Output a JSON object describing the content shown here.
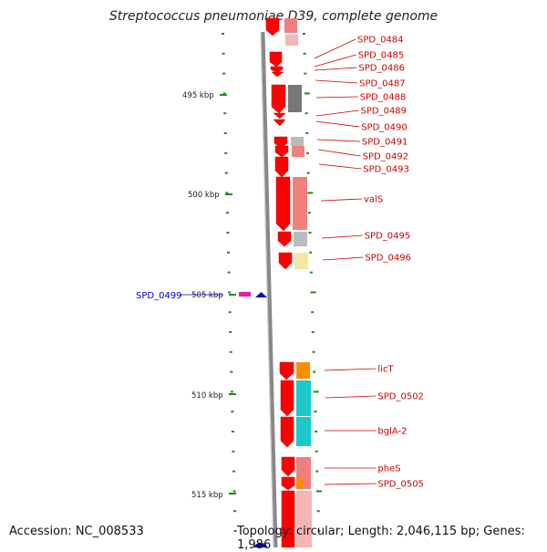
{
  "title": "Streptococcus pneumoniae D39, complete genome",
  "footer": {
    "accession": "Accession: NC_008533",
    "summary": "Topology: circular; Length: 2,046,115 bp; Genes: 1,986"
  },
  "scale_labels": [
    "495 kbp",
    "500 kbp",
    "505 kbp",
    "510 kbp",
    "515 kbp"
  ],
  "highlighted_gene": "SPD_0499",
  "gene_labels": [
    "SPD_0484",
    "SPD_0485",
    "SPD_0486",
    "SPD_0487",
    "SPD_0488",
    "SPD_0489",
    "SPD_0490",
    "SPD_0491",
    "SPD_0492",
    "SPD_0493",
    "valS",
    "SPD_0495",
    "SPD_0496",
    "licT",
    "SPD_0502",
    "bglA-2",
    "pheS",
    "SPD_0505"
  ],
  "colors": {
    "gene_arrow": "#ff0000",
    "label_red": "#cc0000",
    "label_blue": "#0000cc",
    "scale_tick": "#228b22",
    "backbone": "#888888",
    "pink_block": "#f08080",
    "cyan_block": "#1cc8c8",
    "orange_block": "#ff8c00",
    "gray_block": "#777777",
    "light_gray_block": "#bbbbbb",
    "yellow_block": "#f5e6a0"
  }
}
